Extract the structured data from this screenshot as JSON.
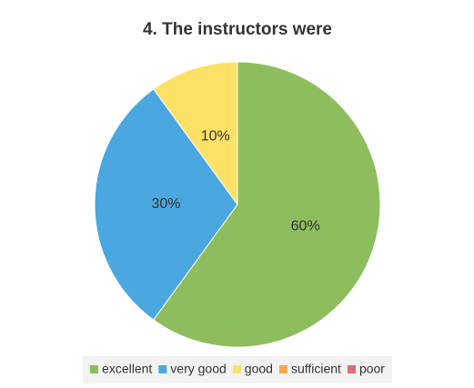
{
  "chart_data": {
    "type": "pie",
    "title": "4. The instructors were",
    "categories": [
      "excellent",
      "very good",
      "good",
      "sufficient",
      "poor"
    ],
    "values": [
      60,
      30,
      10,
      0,
      0
    ],
    "value_labels": [
      "60%",
      "30%",
      "10%",
      null,
      null
    ],
    "colors": [
      "#8dbd5c",
      "#4aa7e0",
      "#fde166",
      "#f8a848",
      "#e06a78"
    ],
    "legend": "bottom"
  }
}
